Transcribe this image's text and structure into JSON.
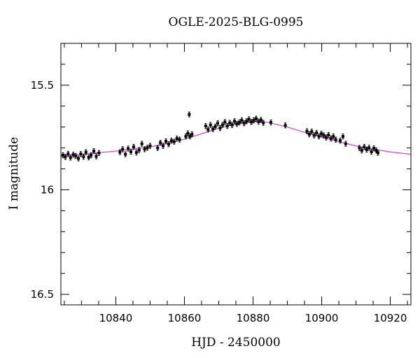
{
  "chart_data": {
    "type": "scatter",
    "title": "OGLE-2025-BLG-0995",
    "xlabel": "HJD - 2450000",
    "ylabel": "I magnitude",
    "xlim": [
      10824,
      10926
    ],
    "ylim": [
      16.55,
      15.3
    ],
    "y_inverted": true,
    "x_ticks": [
      10840,
      10860,
      10880,
      10900,
      10920
    ],
    "y_ticks": [
      15.5,
      16,
      16.5
    ],
    "y_tick_labels": [
      "15.5",
      "16",
      "16.5"
    ],
    "grid": false,
    "series": [
      {
        "kind": "points_with_errorbars",
        "color": "#000000",
        "error": 0.012,
        "x": [
          10824.6,
          10825.3,
          10826.1,
          10826.8,
          10827.6,
          10828.3,
          10829.1,
          10829.8,
          10830.6,
          10831.3,
          10832.1,
          10832.8,
          10833.6,
          10834.3,
          10835.1,
          10841.2,
          10842.0,
          10842.8,
          10843.6,
          10844.4,
          10845.2,
          10846.0,
          10846.8,
          10847.6,
          10848.4,
          10849.2,
          10850.0,
          10852.2,
          10853.0,
          10853.8,
          10854.6,
          10855.4,
          10856.2,
          10857.0,
          10857.8,
          10858.6,
          10860.4,
          10861.0,
          10861.6,
          10862.2,
          10861.4,
          10866.2,
          10866.9,
          10867.6,
          10868.3,
          10869.0,
          10869.7,
          10870.4,
          10871.1,
          10871.8,
          10872.5,
          10873.2,
          10873.9,
          10874.6,
          10875.3,
          10876.0,
          10876.7,
          10877.4,
          10878.1,
          10878.8,
          10879.5,
          10880.2,
          10880.9,
          10881.6,
          10882.3,
          10883.0,
          10885.2,
          10889.4,
          10895.7,
          10896.4,
          10897.1,
          10897.8,
          10898.5,
          10899.2,
          10899.9,
          10900.6,
          10901.3,
          10902.0,
          10902.7,
          10903.4,
          10904.1,
          10905.4,
          10906.2,
          10907.0,
          10911.0,
          10911.7,
          10912.4,
          10913.1,
          10913.8,
          10914.5,
          10915.2,
          10915.9,
          10916.4
        ],
        "y": [
          15.835,
          15.843,
          15.828,
          15.846,
          15.832,
          15.838,
          15.85,
          15.829,
          15.842,
          15.82,
          15.845,
          15.835,
          15.815,
          15.84,
          15.824,
          15.82,
          15.806,
          15.83,
          15.803,
          15.818,
          15.795,
          15.822,
          15.81,
          15.78,
          15.806,
          15.799,
          15.79,
          15.8,
          15.775,
          15.79,
          15.768,
          15.782,
          15.765,
          15.77,
          15.755,
          15.76,
          15.745,
          15.73,
          15.745,
          15.735,
          15.64,
          15.695,
          15.712,
          15.69,
          15.71,
          15.698,
          15.682,
          15.705,
          15.69,
          15.676,
          15.695,
          15.68,
          15.69,
          15.672,
          15.685,
          15.678,
          15.668,
          15.682,
          15.672,
          15.663,
          15.676,
          15.668,
          15.66,
          15.674,
          15.666,
          15.68,
          15.678,
          15.692,
          15.72,
          15.735,
          15.722,
          15.74,
          15.728,
          15.745,
          15.732,
          15.74,
          15.75,
          15.738,
          15.755,
          15.745,
          15.76,
          15.765,
          15.745,
          15.78,
          15.8,
          15.812,
          15.795,
          15.808,
          15.799,
          15.818,
          15.802,
          15.812,
          15.823
        ]
      },
      {
        "kind": "model_line",
        "color": "#e832e8",
        "x": [
          10824,
          10830,
          10840,
          10850,
          10855,
          10860,
          10865,
          10870,
          10875,
          10880,
          10883,
          10885,
          10890,
          10895,
          10900,
          10905,
          10910,
          10915,
          10920,
          10926
        ],
        "y": [
          15.838,
          15.83,
          15.815,
          15.795,
          15.778,
          15.758,
          15.732,
          15.705,
          15.686,
          15.675,
          15.675,
          15.68,
          15.7,
          15.725,
          15.748,
          15.77,
          15.79,
          15.806,
          15.819,
          15.83
        ]
      }
    ]
  }
}
